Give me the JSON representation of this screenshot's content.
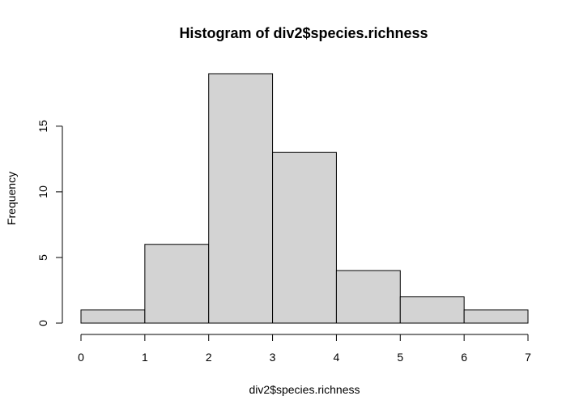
{
  "chart_data": {
    "type": "bar",
    "title": "Histogram of div2$species.richness",
    "xlabel": "div2$species.richness",
    "ylabel": "Frequency",
    "bins": [
      {
        "from": 0,
        "to": 1,
        "count": 1
      },
      {
        "from": 1,
        "to": 2,
        "count": 6
      },
      {
        "from": 2,
        "to": 3,
        "count": 19
      },
      {
        "from": 3,
        "to": 4,
        "count": 13
      },
      {
        "from": 4,
        "to": 5,
        "count": 4
      },
      {
        "from": 5,
        "to": 6,
        "count": 2
      },
      {
        "from": 6,
        "to": 7,
        "count": 1
      }
    ],
    "xlim": [
      0,
      7
    ],
    "ylim": [
      0,
      19
    ],
    "xticks": [
      "0",
      "1",
      "2",
      "3",
      "4",
      "5",
      "6",
      "7"
    ],
    "yticks": [
      "0",
      "5",
      "10",
      "15"
    ],
    "grid": false,
    "bar_color": "#d3d3d3",
    "edge_color": "#000000"
  }
}
